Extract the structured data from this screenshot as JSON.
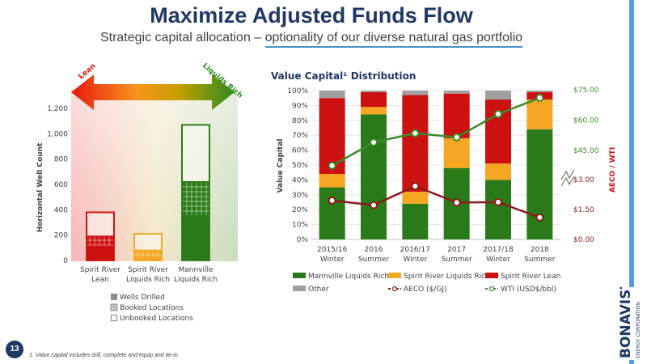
{
  "title": "Maximize Adjusted Funds Flow",
  "subtitle_part1": "Strategic capital allocation – ",
  "subtitle_part2": "optionality of our diverse natural gas portfolio",
  "page_number": "13",
  "footnote": "1. Value capital includes drill, complete and equip and tie-in.",
  "logo": {
    "name": "BONAVISTA",
    "sub": "ENERGY CORPORATION"
  },
  "colors": {
    "wti": "#3a8a2a",
    "aeco": "#8b1a1a",
    "mannville": "#2a7a1a",
    "spirit_liquids": "#f5a623",
    "spirit_lean": "#cc1111",
    "other": "#a0a0a0",
    "title": "#1f3864"
  },
  "chart_data": [
    {
      "type": "bar",
      "ylabel": "Horizontal Well Count",
      "ylim": [
        0,
        1200
      ],
      "yticks": [
        "0",
        "200",
        "400",
        "600",
        "800",
        "1,000",
        "1,200"
      ],
      "arrow_labels": {
        "left": "Lean",
        "right": "Liquids Rich"
      },
      "categories": [
        "Spirit River Lean",
        "Spirit River Liquids Rich",
        "Mannville Liquids Rich"
      ],
      "category_lines": [
        [
          "Spirit River",
          "Lean"
        ],
        [
          "Spirit River",
          "Liquids Rich"
        ],
        [
          "Mannville",
          "Liquids Rich"
        ]
      ],
      "series": [
        {
          "name": "Wells Drilled",
          "values": [
            120,
            30,
            360
          ]
        },
        {
          "name": "Booked Locations",
          "values": [
            70,
            50,
            260
          ]
        },
        {
          "name": "Unbooked Locations",
          "values": [
            190,
            130,
            450
          ]
        }
      ],
      "legend": [
        "Wells Drilled",
        "Booked Locations",
        "Unbooked Locations"
      ]
    },
    {
      "type": "bar",
      "title": "Value Capital¹ Distribution",
      "ylabel": "Value Capital",
      "y2label": "AECO / WTI",
      "ylim": [
        0,
        100
      ],
      "yticks": [
        "0%",
        "10%",
        "20%",
        "30%",
        "40%",
        "50%",
        "60%",
        "70%",
        "80%",
        "90%",
        "100%"
      ],
      "wti_ticks": [
        "$45.00",
        "$60.00",
        "$75.00"
      ],
      "aeco_ticks": [
        "$0.00",
        "$1.50",
        "$3.00"
      ],
      "categories": [
        "2015/16 Winter",
        "2016 Summer",
        "2016/17 Winter",
        "2017 Summer",
        "2017/18 Winter",
        "2018 Summer"
      ],
      "category_lines": [
        [
          "2015/16",
          "Winter"
        ],
        [
          "2016",
          "Summer"
        ],
        [
          "2016/17",
          "Winter"
        ],
        [
          "2017",
          "Summer"
        ],
        [
          "2017/18",
          "Winter"
        ],
        [
          "2018",
          "Summer"
        ]
      ],
      "series": [
        {
          "name": "Mannville Liquids Rich",
          "values": [
            35,
            84,
            24,
            48,
            40,
            74
          ]
        },
        {
          "name": "Spirit River Liquids Rich",
          "values": [
            9,
            5,
            8,
            20,
            11,
            20
          ]
        },
        {
          "name": "Spirit River Lean",
          "values": [
            51,
            10,
            65,
            30,
            43,
            5
          ]
        },
        {
          "name": "Other",
          "values": [
            5,
            1,
            3,
            2,
            6,
            1
          ]
        }
      ],
      "aeco": {
        "name": "AECO ($/GJ)",
        "values": [
          1.95,
          1.72,
          2.67,
          1.85,
          1.87,
          1.1
        ]
      },
      "wti": {
        "name": "WTI (USD$/bbl)",
        "values": [
          37.5,
          49,
          53.5,
          51.5,
          63,
          71
        ]
      },
      "legend": [
        "Mannville Liquids Rich",
        "Spirit River Liquids Rich",
        "Spirit River Lean",
        "Other",
        "AECO ($/GJ)",
        "WTI (USD$/bbl)"
      ]
    }
  ]
}
